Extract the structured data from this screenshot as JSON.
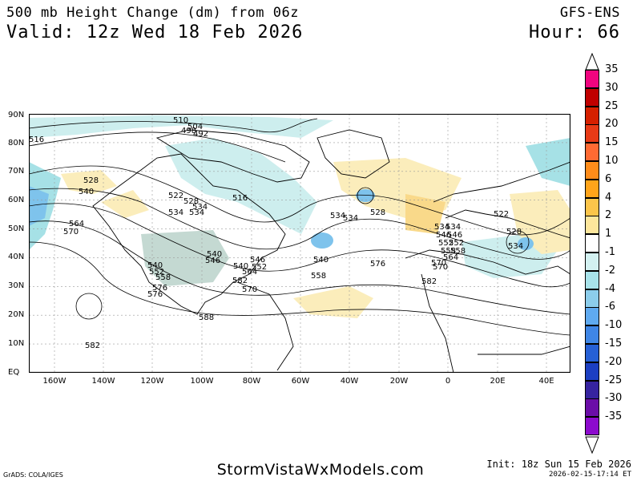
{
  "header": {
    "title_line1": "500 mb Height Change (dm) from 06z",
    "title_line2": "Valid: 12z Wed 18 Feb 2026",
    "model": "GFS-ENS",
    "hour": "Hour: 66"
  },
  "map": {
    "lat_labels": [
      "90N",
      "80N",
      "70N",
      "60N",
      "50N",
      "40N",
      "30N",
      "20N",
      "10N",
      "EQ"
    ],
    "lon_labels": [
      "160W",
      "140W",
      "120W",
      "100W",
      "80W",
      "60W",
      "40W",
      "20W",
      "0",
      "20E",
      "40E"
    ],
    "contour_labels": [
      "510",
      "504",
      "498",
      "492",
      "516",
      "528",
      "540",
      "564",
      "570",
      "522",
      "528",
      "534",
      "516",
      "534",
      "540",
      "528",
      "534",
      "534",
      "546",
      "552",
      "558",
      "570",
      "540",
      "540",
      "534",
      "546",
      "552",
      "558",
      "564",
      "570",
      "522",
      "528",
      "534",
      "546",
      "552",
      "558",
      "564",
      "570",
      "576",
      "576",
      "582",
      "582",
      "582",
      "588",
      "576",
      "558",
      "552",
      "546",
      "540",
      "534",
      "534"
    ],
    "colors": {
      "land_outline": "#000000",
      "ocean": "#ffffff",
      "cyan_light": "#cdeeee",
      "cyan_mid": "#a6e1e6",
      "blue": "#7ec3ec",
      "yellow_light": "#fbedbb",
      "yellow_mid": "#f9d98a",
      "grey_green": "#c4d9d2"
    }
  },
  "legend": {
    "labels": [
      "35",
      "30",
      "25",
      "20",
      "15",
      "10",
      "6",
      "4",
      "2",
      "1",
      "-1",
      "-2",
      "-4",
      "-6",
      "-10",
      "-15",
      "-20",
      "-25",
      "-30",
      "-35"
    ],
    "colors": [
      "#f0047f",
      "#c00000",
      "#d62000",
      "#e83a16",
      "#ff6a33",
      "#ff8c1a",
      "#ffa41a",
      "#fcc54a",
      "#fde69c",
      "#ffffff",
      "#d3f1f1",
      "#a8e3ea",
      "#8ccdeb",
      "#5faaf0",
      "#3f86e6",
      "#2660d6",
      "#1c3fc2",
      "#3623a0",
      "#6b0da8",
      "#8c0acd"
    ]
  },
  "footer": {
    "grads": "GrADS: COLA/IGES",
    "brand": "StormVistaWxModels.com",
    "init": "Init: 18z Sun 15 Feb 2026",
    "stamp": "2026-02-15-17:14 ET"
  }
}
